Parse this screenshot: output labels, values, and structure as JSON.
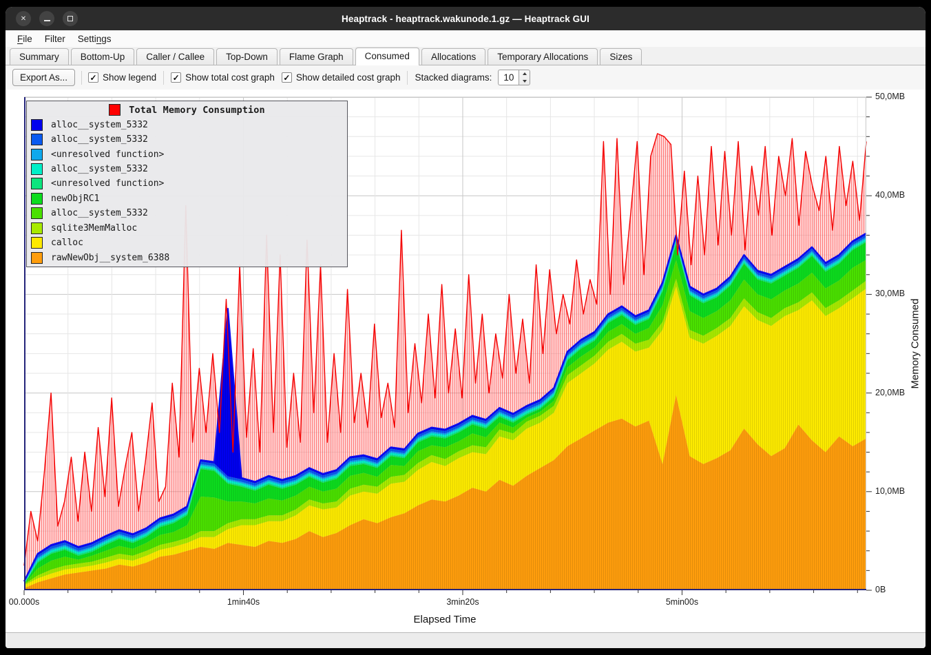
{
  "window": {
    "title": "Heaptrack - heaptrack.wakunode.1.gz — Heaptrack GUI"
  },
  "window_controls": [
    {
      "name": "close"
    },
    {
      "name": "minimize"
    },
    {
      "name": "maximize"
    }
  ],
  "menubar": {
    "items": [
      {
        "pre": "",
        "key": "F",
        "post": "ile"
      },
      {
        "pre": "Filter",
        "key": "",
        "post": ""
      },
      {
        "pre": "Setti",
        "key": "n",
        "post": "gs"
      }
    ]
  },
  "tabs": {
    "active": "Consumed",
    "items": [
      {
        "label": "Summary"
      },
      {
        "label": "Bottom-Up"
      },
      {
        "label": "Caller / Callee"
      },
      {
        "label": "Top-Down"
      },
      {
        "label": "Flame Graph"
      },
      {
        "label": "Consumed"
      },
      {
        "label": "Allocations"
      },
      {
        "label": "Temporary Allocations"
      },
      {
        "label": "Sizes"
      }
    ]
  },
  "toolbar": {
    "export_label": "Export As...",
    "checkboxes": [
      {
        "label": "Show legend",
        "checked": true
      },
      {
        "label": "Show total cost graph",
        "checked": true
      },
      {
        "label": "Show detailed cost graph",
        "checked": true
      }
    ],
    "stacked_label": "Stacked diagrams:",
    "stacked_value": "10"
  },
  "chart_data": {
    "type": "area",
    "title": "Total Memory Consumption",
    "xlabel": "Elapsed Time",
    "ylabel": "Memory Consumed",
    "x_ticks": [
      "00.000s",
      "1min40s",
      "3min20s",
      "5min00s"
    ],
    "x_tick_seconds": [
      0,
      100,
      200,
      300
    ],
    "x_range_seconds": [
      0,
      384
    ],
    "x_minor_step_seconds": 20,
    "x_major_step_seconds": 100,
    "y_ticks": [
      "0B",
      "10,0MB",
      "20,0MB",
      "30,0MB",
      "40,0MB",
      "50,0MB"
    ],
    "y_range_mb": [
      0,
      50
    ],
    "y_minor_step_mb": 2,
    "y_major_step_mb": 10,
    "grid": true,
    "legend_position": "top-left",
    "points": 63,
    "legend": [
      {
        "label": "Total Memory Consumption",
        "color": "#ff0000",
        "is_title": true
      },
      {
        "label": "alloc__system_5332",
        "color": "#0000ee"
      },
      {
        "label": "alloc__system_5332",
        "color": "#0a5af0"
      },
      {
        "label": "<unresolved function>",
        "color": "#0fa8ec"
      },
      {
        "label": "alloc__system_5332",
        "color": "#00efc8"
      },
      {
        "label": "<unresolved function>",
        "color": "#0ce57e"
      },
      {
        "label": "newObjRC1",
        "color": "#0cdc1e"
      },
      {
        "label": "alloc__system_5332",
        "color": "#4ae000"
      },
      {
        "label": "sqlite3MemMalloc",
        "color": "#a8ea00"
      },
      {
        "label": "calloc",
        "color": "#fdea00"
      },
      {
        "label": "rawNewObj__system_6388",
        "color": "#ff9d0c"
      }
    ],
    "total_series": {
      "name": "Total Memory Consumption",
      "color": "#ff0000",
      "values": [
        2.5,
        8.0,
        5.0,
        12.0,
        20.0,
        6.5,
        9.0,
        13.5,
        7.0,
        14.0,
        8.0,
        16.5,
        9.5,
        19.5,
        8.5,
        12.5,
        16.0,
        8.0,
        13.0,
        19.0,
        9.0,
        10.5,
        21.0,
        13.5,
        39.0,
        15.0,
        22.5,
        16.0,
        24.0,
        16.0,
        29.5,
        14.0,
        33.0,
        15.5,
        24.5,
        14.0,
        36.0,
        16.0,
        34.0,
        14.5,
        22.0,
        15.0,
        35.5,
        18.0,
        33.0,
        15.0,
        24.0,
        16.0,
        30.5,
        17.0,
        22.0,
        16.5,
        27.0,
        17.5,
        21.0,
        16.5,
        36.5,
        18.0,
        25.0,
        19.0,
        28.0,
        19.5,
        31.0,
        20.0,
        26.5,
        19.5,
        32.0,
        21.0,
        28.0,
        20.0,
        26.0,
        21.5,
        30.0,
        22.0,
        27.5,
        21.0,
        33.0,
        24.0,
        32.5,
        26.0,
        30.0,
        27.0,
        33.5,
        28.0,
        31.5,
        29.0,
        45.5,
        30.0,
        45.8,
        31.0,
        38.0,
        45.5,
        32.0,
        44.0,
        46.3,
        46.0,
        45.2,
        34.0,
        42.5,
        33.0,
        42.0,
        34.0,
        45.0,
        35.0,
        44.5,
        36.0,
        45.5,
        34.5,
        43.0,
        38.0,
        45.0,
        36.0,
        44.0,
        40.0,
        45.8,
        37.0,
        44.5,
        41.0,
        38.5,
        44.0,
        36.5,
        45.0,
        39.0,
        43.5,
        37.5,
        45.5
      ]
    },
    "stacked_series": [
      {
        "name": "rawNewObj__system_6388",
        "color": "#ff9d0c",
        "values": [
          0.2,
          0.8,
          1.2,
          1.6,
          1.8,
          2.0,
          2.2,
          2.6,
          2.4,
          2.8,
          3.4,
          3.6,
          4.0,
          4.4,
          4.2,
          4.8,
          4.6,
          4.4,
          5.0,
          4.8,
          5.2,
          6.0,
          5.4,
          5.8,
          6.6,
          7.2,
          6.8,
          7.4,
          7.8,
          8.6,
          9.2,
          9.0,
          9.6,
          10.4,
          10.0,
          11.2,
          10.6,
          11.6,
          12.4,
          13.2,
          14.6,
          15.4,
          16.2,
          17.0,
          17.4,
          16.6,
          17.2,
          12.8,
          19.8,
          13.6,
          12.8,
          13.4,
          14.2,
          16.4,
          14.8,
          13.6,
          14.4,
          16.8,
          15.2,
          14.0,
          15.6,
          14.6,
          15.4
        ]
      },
      {
        "name": "calloc",
        "color": "#fdea00",
        "values": [
          0.3,
          0.4,
          0.5,
          0.5,
          0.5,
          0.5,
          0.6,
          0.6,
          0.6,
          0.7,
          0.7,
          0.8,
          0.8,
          1.0,
          1.2,
          1.4,
          2.0,
          2.2,
          2.0,
          2.2,
          2.4,
          2.6,
          2.8,
          2.6,
          3.0,
          2.8,
          3.0,
          3.4,
          3.2,
          3.6,
          3.8,
          3.6,
          3.8,
          3.6,
          3.8,
          4.4,
          4.6,
          4.8,
          4.6,
          4.8,
          6.4,
          6.6,
          6.8,
          7.4,
          7.8,
          7.6,
          7.4,
          13.6,
          11.0,
          12.0,
          12.2,
          12.4,
          12.6,
          12.4,
          12.6,
          13.2,
          13.4,
          11.6,
          14.2,
          13.8,
          13.0,
          15.0,
          15.2
        ]
      },
      {
        "name": "sqlite3MemMalloc",
        "color": "#a8ea00",
        "values": [
          0.1,
          0.3,
          0.4,
          0.4,
          0.4,
          0.4,
          0.5,
          0.5,
          0.5,
          0.5,
          0.5,
          0.5,
          0.5,
          0.6,
          0.6,
          0.6,
          0.6,
          0.6,
          0.6,
          0.6,
          0.6,
          0.6,
          0.6,
          0.6,
          0.7,
          0.7,
          0.7,
          0.7,
          0.7,
          0.7,
          0.7,
          0.7,
          0.7,
          0.7,
          0.7,
          0.7,
          0.7,
          0.7,
          0.7,
          0.7,
          0.8,
          0.8,
          0.8,
          0.8,
          0.8,
          0.8,
          0.8,
          0.8,
          0.8,
          0.8,
          0.8,
          0.8,
          0.8,
          0.8,
          0.8,
          0.8,
          0.8,
          0.8,
          0.8,
          0.8,
          0.8,
          0.8,
          0.8
        ]
      },
      {
        "name": "alloc__system_5332",
        "color": "#4ae000",
        "values": [
          0.0,
          0.7,
          0.9,
          0.9,
          0.4,
          0.6,
          0.7,
          0.8,
          0.7,
          0.8,
          1.0,
          1.0,
          1.3,
          3.5,
          3.4,
          2.2,
          1.8,
          1.6,
          1.7,
          1.5,
          1.4,
          1.3,
          1.2,
          1.3,
          1.3,
          1.2,
          1.0,
          1.2,
          0.9,
          1.2,
          1.0,
          1.2,
          1.0,
          1.2,
          1.0,
          0.7,
          0.6,
          0.4,
          0.4,
          0.5,
          0.8,
          0.9,
          0.8,
          1.0,
          1.0,
          1.0,
          1.2,
          1.7,
          1.9,
          1.9,
          1.8,
          1.7,
          1.8,
          1.9,
          1.8,
          1.9,
          1.8,
          1.9,
          2.0,
          2.0,
          2.0,
          2.3,
          2.1
        ]
      },
      {
        "name": "newObjRC1",
        "color": "#0cdc1e",
        "values": [
          0.0,
          0.6,
          0.7,
          0.7,
          0.4,
          0.4,
          0.6,
          0.7,
          0.6,
          0.6,
          0.8,
          0.9,
          1.0,
          2.8,
          2.7,
          1.8,
          1.5,
          1.3,
          1.4,
          1.2,
          1.1,
          1.0,
          0.9,
          1.0,
          1.0,
          0.9,
          0.9,
          0.9,
          0.8,
          0.9,
          0.9,
          0.9,
          0.9,
          0.9,
          0.9,
          0.6,
          0.5,
          0.3,
          0.3,
          0.4,
          0.7,
          0.8,
          0.7,
          0.9,
          0.9,
          0.9,
          0.9,
          1.4,
          1.6,
          1.6,
          1.5,
          1.4,
          1.5,
          1.6,
          1.5,
          1.6,
          1.5,
          1.6,
          1.7,
          1.7,
          1.7,
          1.8,
          1.8
        ]
      },
      {
        "name": "<unresolved function>",
        "color": "#0ce57e",
        "flat": 0.15,
        "overrides": {
          "0": 0.05
        }
      },
      {
        "name": "alloc__system_5332",
        "color": "#00efc8",
        "flat": 0.2,
        "overrides": {
          "0": 0.05
        }
      },
      {
        "name": "<unresolved function>",
        "color": "#0fa8ec",
        "flat": 0.15,
        "overrides": {
          "0": 0.05
        }
      },
      {
        "name": "alloc__system_5332",
        "color": "#0a5af0",
        "flat": 0.25,
        "overrides": {
          "0": 0.1
        }
      },
      {
        "name": "alloc__system_5332",
        "color": "#0000ee",
        "flat": 0.15,
        "overrides": {
          "0": 0.05,
          "15": 17.0
        }
      }
    ]
  }
}
